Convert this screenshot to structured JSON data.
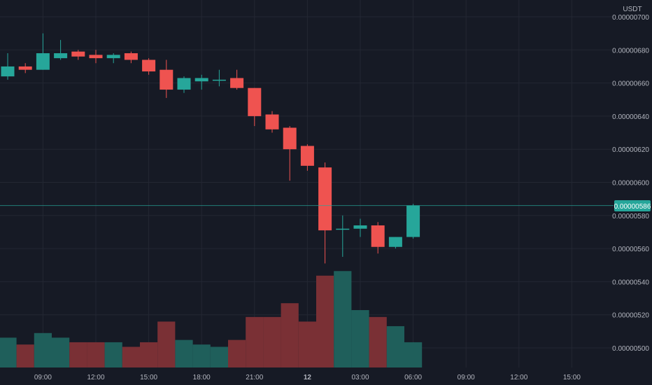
{
  "chart_data": {
    "type": "candlestick",
    "price_unit": "USDT",
    "current_price": "0.00000586",
    "y_ticks": [
      "0.00000700",
      "0.00000680",
      "0.00000660",
      "0.00000640",
      "0.00000620",
      "0.00000600",
      "0.00000580",
      "0.00000560",
      "0.00000540",
      "0.00000520",
      "0.00000500"
    ],
    "y_tick_values": [
      700,
      680,
      660,
      640,
      620,
      600,
      580,
      560,
      540,
      520,
      500
    ],
    "y_scale_note": "values in units of 1e-8 USDT",
    "x_ticks": [
      "09:00",
      "12:00",
      "15:00",
      "18:00",
      "21:00",
      "12",
      "03:00",
      "06:00",
      "09:00",
      "12:00",
      "15:00"
    ],
    "x_tick_slots": [
      2,
      5,
      8,
      11,
      14,
      17,
      20,
      23,
      26,
      29,
      32
    ],
    "colors": {
      "up": "#26a69a",
      "down": "#ef5350",
      "vol_up": "#1f5f5b",
      "vol_down": "#7a3035",
      "grid": "#232733",
      "background": "#161a25",
      "price_line": "#26a69a"
    },
    "candles": [
      {
        "o": 664,
        "h": 678,
        "l": 662,
        "c": 670
      },
      {
        "o": 670,
        "h": 672,
        "l": 666,
        "c": 668
      },
      {
        "o": 668,
        "h": 690,
        "l": 668,
        "c": 678
      },
      {
        "o": 675,
        "h": 686,
        "l": 674,
        "c": 678
      },
      {
        "o": 679,
        "h": 680,
        "l": 674,
        "c": 676
      },
      {
        "o": 677,
        "h": 680,
        "l": 672,
        "c": 675
      },
      {
        "o": 675,
        "h": 678,
        "l": 672,
        "c": 677
      },
      {
        "o": 678,
        "h": 679,
        "l": 672,
        "c": 674
      },
      {
        "o": 674,
        "h": 675,
        "l": 665,
        "c": 667
      },
      {
        "o": 668,
        "h": 674,
        "l": 651,
        "c": 656
      },
      {
        "o": 656,
        "h": 664,
        "l": 654,
        "c": 663
      },
      {
        "o": 661,
        "h": 665,
        "l": 656,
        "c": 663
      },
      {
        "o": 662,
        "h": 668,
        "l": 658,
        "c": 662
      },
      {
        "o": 663,
        "h": 668,
        "l": 656,
        "c": 657
      },
      {
        "o": 657,
        "h": 657,
        "l": 634,
        "c": 640
      },
      {
        "o": 641,
        "h": 643,
        "l": 630,
        "c": 632
      },
      {
        "o": 633,
        "h": 634,
        "l": 601,
        "c": 620
      },
      {
        "o": 622,
        "h": 623,
        "l": 607,
        "c": 610
      },
      {
        "o": 609,
        "h": 612,
        "l": 551,
        "c": 571
      },
      {
        "o": 572,
        "h": 580,
        "l": 555,
        "c": 572
      },
      {
        "o": 572,
        "h": 578,
        "l": 567,
        "c": 574
      },
      {
        "o": 574,
        "h": 576,
        "l": 557,
        "c": 561
      },
      {
        "o": 561,
        "h": 567,
        "l": 560,
        "c": 567
      },
      {
        "o": 567,
        "h": 587,
        "l": 566,
        "c": 586
      }
    ],
    "volume": [
      13,
      10,
      15,
      13,
      11,
      11,
      11,
      9,
      11,
      20,
      12,
      10,
      9,
      12,
      22,
      22,
      28,
      20,
      40,
      42,
      25,
      22,
      18,
      11
    ]
  }
}
